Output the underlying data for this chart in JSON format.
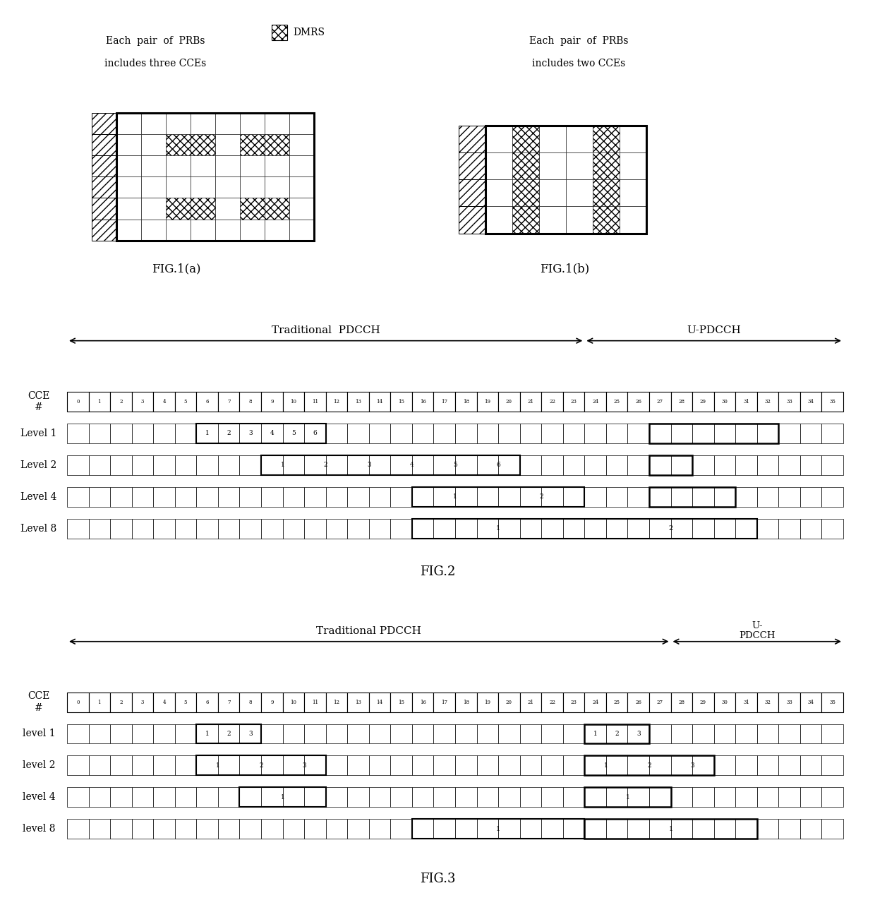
{
  "fig1a_label": "FIG.1(a)",
  "fig1b_label": "FIG.1(b)",
  "fig2_label": "FIG.2",
  "fig3_label": "FIG.3",
  "text_left_line1": "Each  pair  of  PRBs",
  "text_left_line2": "includes three CCEs",
  "text_right_line1": "Each  pair  of  PRBs",
  "text_right_line2": "includes two CCEs",
  "dmrs_label": "DMRS",
  "fig2_trad_label": "Traditional  PDCCH",
  "fig2_updcch_label": "U-PDCCH",
  "fig3_trad_label": "Traditional PDCCH",
  "fig3_updcch_label": "U-\nPDCCH",
  "cce_label": "CCE\n#",
  "num_cells": 36,
  "background_color": "#ffffff"
}
